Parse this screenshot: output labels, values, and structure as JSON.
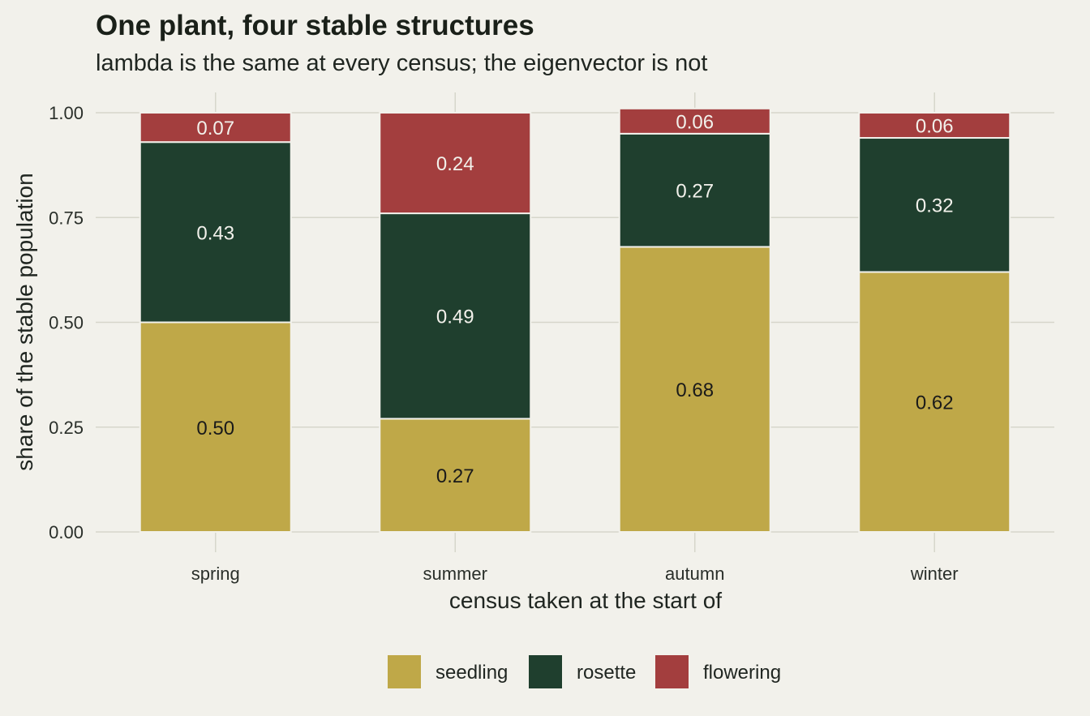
{
  "chart_data": {
    "type": "bar",
    "stacked": true,
    "title": "One plant, four stable structures",
    "subtitle": "lambda is the same at every census; the eigenvector is not",
    "xlabel": "census taken at the start of",
    "ylabel": "share of the stable population",
    "ylim": [
      0,
      1
    ],
    "yticks": [
      "0.00",
      "0.25",
      "0.50",
      "0.75",
      "1.00"
    ],
    "categories": [
      "spring",
      "summer",
      "autumn",
      "winter"
    ],
    "series": [
      {
        "name": "seedling",
        "color": "#bfa848",
        "label_color": "#1a1a1a",
        "values": [
          0.5,
          0.27,
          0.68,
          0.62
        ],
        "labels": [
          "0.50",
          "0.27",
          "0.68",
          "0.62"
        ]
      },
      {
        "name": "rosette",
        "color": "#1f3f2e",
        "label_color": "#f2f1eb",
        "values": [
          0.43,
          0.49,
          0.27,
          0.32
        ],
        "labels": [
          "0.43",
          "0.49",
          "0.27",
          "0.32"
        ]
      },
      {
        "name": "flowering",
        "color": "#a33e3e",
        "label_color": "#f2f1eb",
        "values": [
          0.07,
          0.24,
          0.06,
          0.06
        ],
        "labels": [
          "0.07",
          "0.24",
          "0.06",
          "0.06"
        ]
      }
    ],
    "grid": true,
    "legend_position": "bottom",
    "background": "#f2f1eb",
    "grid_color": "#d6d6cb"
  }
}
